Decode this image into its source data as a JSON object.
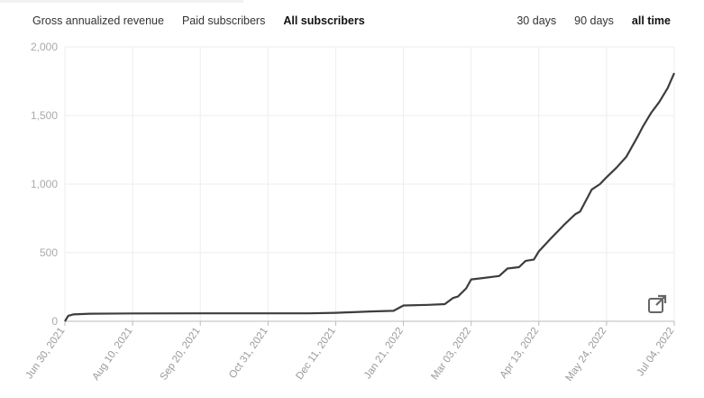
{
  "metric_tabs": [
    {
      "label": "Gross annualized revenue",
      "active": false
    },
    {
      "label": "Paid subscribers",
      "active": false
    },
    {
      "label": "All subscribers",
      "active": true
    }
  ],
  "range_tabs": [
    {
      "label": "30 days",
      "active": false
    },
    {
      "label": "90 days",
      "active": false
    },
    {
      "label": "all time",
      "active": true
    }
  ],
  "popout_icon": "external-link-icon",
  "chart_data": {
    "type": "line",
    "y_ticks": [
      "0",
      "500",
      "1,000",
      "1,500",
      "2,000"
    ],
    "ylim": [
      0,
      2000
    ],
    "x_ticks": [
      "Jun 30, 2021",
      "Aug 10, 2021",
      "Sep 20, 2021",
      "Oct 31, 2021",
      "Dec 11, 2021",
      "Jan 21, 2022",
      "Mar 03, 2022",
      "Apr 13, 2022",
      "May 24, 2022",
      "Jul 04, 2022"
    ],
    "xlim": [
      "2021-06-30",
      "2022-07-04"
    ],
    "grid": true,
    "line_color": "#3d3d3d",
    "series": [
      {
        "x": [
          "2021-06-30",
          "2021-07-02",
          "2021-07-05",
          "2021-07-15",
          "2021-08-10",
          "2021-09-20",
          "2021-10-31",
          "2021-11-25",
          "2021-12-11",
          "2021-12-20",
          "2022-01-01",
          "2022-01-15",
          "2022-01-21",
          "2022-02-05",
          "2022-02-15",
          "2022-02-20",
          "2022-02-23",
          "2022-02-28",
          "2022-03-03",
          "2022-03-10",
          "2022-03-20",
          "2022-03-25",
          "2022-04-01",
          "2022-04-05",
          "2022-04-10",
          "2022-04-13",
          "2022-04-20",
          "2022-04-28",
          "2022-05-05",
          "2022-05-08",
          "2022-05-15",
          "2022-05-20",
          "2022-05-24",
          "2022-05-30",
          "2022-06-05",
          "2022-06-12",
          "2022-06-15",
          "2022-06-20",
          "2022-06-25",
          "2022-06-30",
          "2022-07-04"
        ],
        "y": [
          0,
          40,
          50,
          55,
          57,
          58,
          58,
          58,
          62,
          66,
          72,
          76,
          115,
          120,
          125,
          170,
          180,
          240,
          305,
          315,
          330,
          385,
          395,
          440,
          450,
          510,
          600,
          700,
          780,
          800,
          960,
          1000,
          1050,
          1120,
          1200,
          1350,
          1420,
          1520,
          1600,
          1700,
          1810
        ]
      }
    ]
  }
}
